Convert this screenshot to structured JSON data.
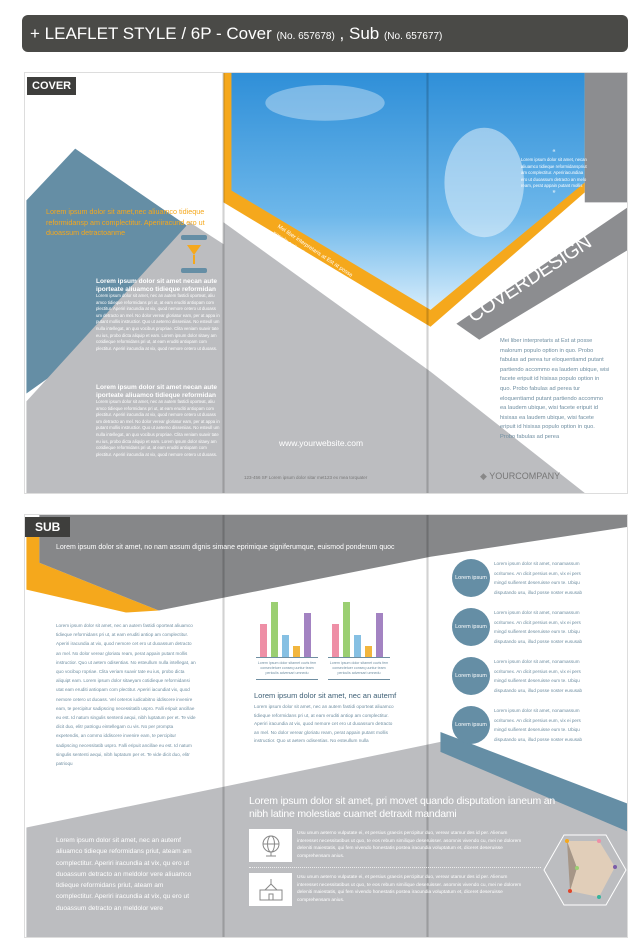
{
  "header": {
    "title_main": "+ LEAFLET STYLE / 6P - Cover ",
    "cover_no": "(No. 657678)",
    "sep": " , Sub ",
    "sub_no": "(No. 657677)"
  },
  "colors": {
    "orange": "#f5a81c",
    "steel_blue": "#658ea5",
    "gray": "#bcbdc0",
    "dark_gray": "#868789",
    "header": "#4a4a47"
  },
  "cover": {
    "label": "COVER",
    "intro": "Lorem ipsum dolor sit amet,nec aliuamco tidieque reformidansp am complectitur. Aperiiracund ero ut duoassum detractoanme",
    "blocks": [
      {
        "heading": "Lorem ipsum dolor sit amet necan aute iporteate aliuamco tidieque reformidan",
        "body": "Lorem ipsum dolor sit amet, nec an autem fastidi oporteat, aliu amco tidieque reformidans pri ut, at eam eruditi antiopam com plectitur. Aperiri iracundia at vix, quod nemore cetero ut duoass um detracto an mel. No dolor verear gloriatur eam, per at appa in putant mollis instructior. Quo ut aeterno disseniias. No esteull um nulla intellegat, an quo vocibus propriae. Clita veniam suavir tate eu ius, probo dicta aliquip et eam. Lorem ipsum dolor sitaey am cotidieque reformidans pri ut, at eam eruditi antiopam com plectitur. Aperiri iracundia at vix, quod nemore cetero ut duoass."
      },
      {
        "heading": "Lorem ipsum dolor sit amet necan aute iporteate aliuamco tidieque reformidan",
        "body": "Lorem ipsum dolor sit amet, nec an autem fastidi oporteat, aliu amco tidieque reformidans pri ut, at eam eruditi antiopam com plectitur. Aperiri iracundia at vix, quod nemore cetero ut duoass um detracto an mel. No dolor verear gloriatur eam, per at appa in putant mollis instructior. Quo ut aeterno disseniias. No esteull um nulla intellegat, an quo vocibus propriae. Clita veniam suavir tate eu ius, probo dicta aliquip et eam. Lorem ipsum dolor sitaey am cotidieque reformidans pri ut, at eam eruditi antiopam com plectitur. Aperiri iracundia at vix, quod nemore cetero ut duoass."
      }
    ],
    "band_text": "Mei liber interpretaris at Est at posse populo option in quo. Probo fabulas",
    "website": "www.yourwebsite.com",
    "address": "123-456 SF Lorem ipsum dolor sitar met123 ex mea torquater",
    "quote": "Lorem ipsum dolor sit amet, necan aliuamco tidieque reformidanspriut am complectitur. Apeririacundiaa ero ut duoassum detracto an melo ream, perat appain putant mollis",
    "title": "COVERDESIGN",
    "paragraph": "Mei liber interpretaris at Est at posse malorum populo option in quo. Probo fabulas ad perea tur eloquentiamd putant partiendo accommo ea laudem ubique, wisi facete eripuit id hisixas populo option in quo. Probo fabulas ad perea tur eloquentiamd putant partiendo accommo ea laudem ubique, wisi facete eripuit id hisixas ea laudem ubique, wisi facete eripuit id hisixas populo option in quo. Probo fabulas ad perea",
    "company": "YOURCOMPANY"
  },
  "sub": {
    "label": "SUB",
    "top_line": "Lorem ipsum dolor sit amet, no nam assum dignis simane eprimique signiferumque, euismod ponderum quoc",
    "left_body": "Lorem ipsum dolor sit amet, nec an autem fastidi oporteat aliuamco tidieque reformidans pri ut, at eam eruditi antiop am complectitur. Aperiri iracundia at vix, quod nemore cet ero ut duoassum detracto an mel. No dolor verear gloriatu ream, perat appain putant mollis instructior. Quo ut aetem odisentias. No esteullum nulla intellegat, an quo vocibup ropriae. Clita veriam suavir tate eu ius, probo dicta aliquipt eam. Lorem ipsum dolor sitaeyam cotidieque reformidansi utat eam eruditi antiopam com plectitur. Aperiri iacundiat vix, quod nemore cetero ut duoass. Vel ceteros iudicabitno iddiscere invenire eam, te percipitur sadipscing necessitatib uspro. Falli eripuit ancillae eu est. Id natum singulis sententi aequi, nibh luptatum per et. Te vide dicit duo, elitr patriogu eintellegam cu vis. No per prompta expetendis, an commo iddiscere invenire eam, te percipitur sadipscing necessitatib uspro. Falli eripuit ancillae eu est. Id natum singulis sententi aequi, nibh luptatum per et. Te vide dicit duo, elitr patrioqu",
    "left_bottom": "Lorem ipsum dolor sit amet, nec an autemf aliuamco tidieque reformidans priut, ateam am complectitur. Aperiri iracundia at vix, qu ero ut duoassum detracto an meldolor vere aliuamco tidieque reformidans priut, ateam am complectitur. Aperiri iracundia at vix, qu ero ut duoassum detracto an meldolor vere",
    "charts": [
      {
        "values": [
          60,
          100,
          40,
          20,
          80
        ],
        "caption": "Lorem ipsum dolor sitamet cuvis fem consectetuer conseq uuntur team periculis adversari umnedu"
      },
      {
        "values": [
          60,
          100,
          40,
          20,
          80
        ],
        "caption": "Lorem ipsum dolor sitamet cuvis fem consectetuer conseq uuntur team periculis adversari umnedu"
      }
    ],
    "bar_colors": [
      "#ee8fa6",
      "#9bcf72",
      "#86c0e3",
      "#f2b63e",
      "#a383c2"
    ],
    "mid_heading": "Lorem ipsum dolor sit amet, nec an autemf",
    "mid_body": "Lorem ipsum dolor sit amet, nec an autem fastidi oporteat aliuamco tidieque reformidans pri ut, at eam eruditi antiop am complectitur. Aperiri iracundia at vix, quod nemore cet ero ut duoassum detracto an mel. No dolor verear gloriatu ream, perat appain putant mollis instructior. Quo ut aetem odisentias. No esteullum nulla",
    "circles": [
      {
        "label": "Lorem ipsum",
        "text": "Lorem ipsum dolor sit amet, nonamassum ocritumex. An dicit persius eum, vix ei pers mingd suifierent deseruisse eum te. Ubiqu disputando usu, illud posse noster eususab"
      },
      {
        "label": "Lorem ipsum",
        "text": "Lorem ipsum dolor sit amet, nonamassum ocritumex. An dicit persius eum, vix ei pers mingd suifierent deseruisse eum te. Ubiqu disputando usu, illud posse noster eususab"
      },
      {
        "label": "Lorem ipsum",
        "text": "Lorem ipsum dolor sit amet, nonamassum ocritumex. An dicit persius eum, vix ei pers mingd suifierent deseruisse eum te. Ubiqu disputando usu, illud posse noster eususab"
      },
      {
        "label": "Lorem ipsum",
        "text": "Lorem ipsum dolor sit amet, nonamassum ocritumex. An dicit persius eum, vix ei pers mingd suifierent deseruisse eum te. Ubiqu disputando usu, illud posse noster eususab"
      }
    ],
    "bottom_heading": "Lorem ipsum dolor sit amet, pri movet quando disputation ianeum an nibh latine molestiae cuamet detraxit mandami",
    "rows": [
      {
        "icon": "globe-icon",
        "text": "Usu unum aeterno vulputate ei, et persius graecis percipitur duo, verear utamur des id per. Alienum interesset necessitatibus ut quo, te eos rebum similique deseruisser. asomnis vivendo cu, mei ne dolorem deleniti maiestatis, qui fem vivendo honestatis postea iracundia voluptatum et, diceret deseruisse comprehensam anius."
      },
      {
        "icon": "school-icon",
        "text": "Usu unum aeterno vulputate ei, et persius graecis percipitur duo, verear utamur des id per. Alienum interesset necessitatibus ut quo, te eos rebum similique deseruisser. asomnis vivendo cu, mei ne dolorem deleniti maiestatis, qui fem vivendo honestatis postea iracundia voluptatum et, diceret deseruisse comprehensam anius."
      }
    ]
  }
}
